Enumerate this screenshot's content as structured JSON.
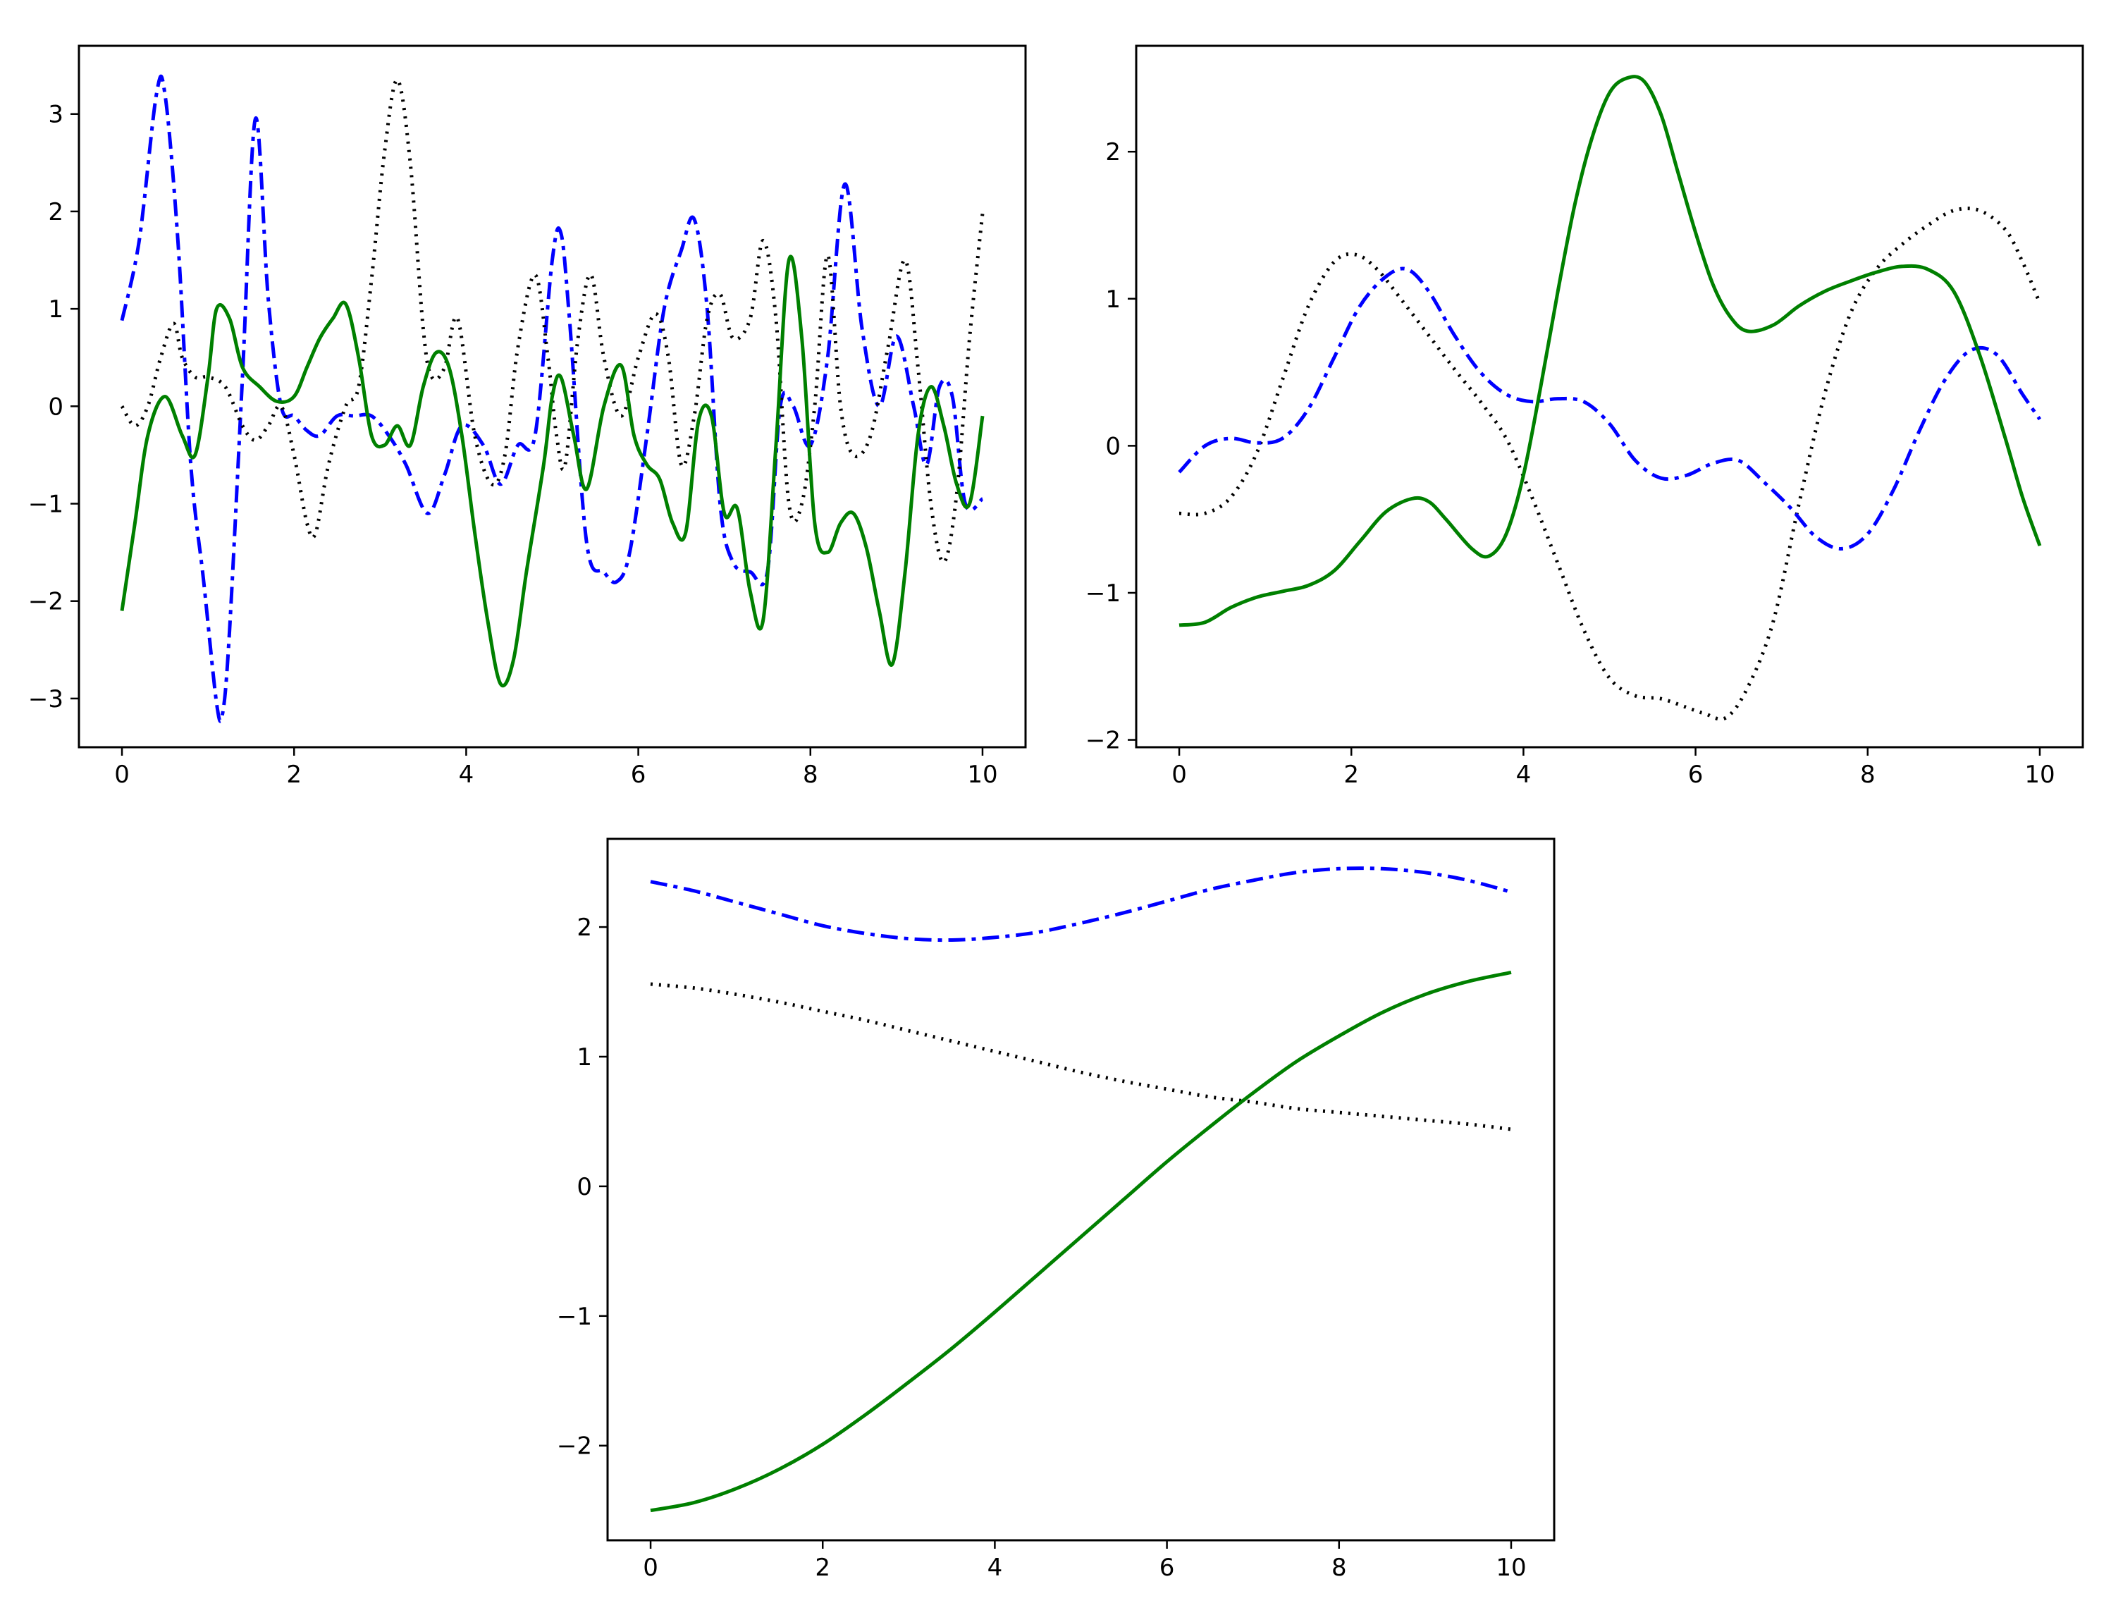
{
  "chart_data": [
    {
      "type": "line",
      "xlim": [
        -0.5,
        10.5
      ],
      "ylim": [
        -3.5,
        3.7
      ],
      "xticks": [
        0,
        2,
        4,
        6,
        8,
        10
      ],
      "yticks": [
        -3,
        -2,
        -1,
        0,
        1,
        2,
        3
      ],
      "xtick_labels": [
        "0",
        "2",
        "4",
        "6",
        "8",
        "10"
      ],
      "ytick_labels": [
        "−3",
        "−2",
        "−1",
        "0",
        "1",
        "2",
        "3"
      ],
      "grid": false,
      "series": [
        {
          "color": "#0000ff",
          "style": "dashdot",
          "x": [
            0,
            0.2,
            0.4,
            0.5,
            0.65,
            0.8,
            0.95,
            1.1,
            1.17,
            1.25,
            1.4,
            1.55,
            1.7,
            1.85,
            2.0,
            2.15,
            2.3,
            2.5,
            2.7,
            2.9,
            3.1,
            3.3,
            3.55,
            3.75,
            3.95,
            4.2,
            4.4,
            4.6,
            4.8,
            5.0,
            5.1,
            5.2,
            5.4,
            5.6,
            5.75,
            5.9,
            6.1,
            6.3,
            6.5,
            6.65,
            6.8,
            6.95,
            7.1,
            7.3,
            7.5,
            7.65,
            7.8,
            8.0,
            8.2,
            8.4,
            8.6,
            8.8,
            9.0,
            9.2,
            9.35,
            9.5,
            9.65,
            9.8,
            10.0
          ],
          "y": [
            0.88,
            1.7,
            3.2,
            3.2,
            1.7,
            -0.6,
            -1.8,
            -3.05,
            -3.15,
            -2.3,
            0.3,
            2.95,
            1.1,
            0.0,
            -0.1,
            -0.25,
            -0.3,
            -0.1,
            -0.1,
            -0.1,
            -0.3,
            -0.6,
            -1.1,
            -0.7,
            -0.2,
            -0.4,
            -0.8,
            -0.4,
            -0.3,
            1.5,
            1.78,
            0.9,
            -1.4,
            -1.7,
            -1.8,
            -1.5,
            -0.3,
            1.0,
            1.6,
            1.92,
            1.0,
            -1.0,
            -1.6,
            -1.7,
            -1.7,
            0.0,
            0.0,
            -0.4,
            0.5,
            2.28,
            0.8,
            0.0,
            0.72,
            0.0,
            -0.6,
            0.2,
            0.1,
            -1.0,
            -0.95
          ]
        },
        {
          "color": "#000000",
          "style": "dotted",
          "x": [
            0,
            0.15,
            0.3,
            0.45,
            0.6,
            0.7,
            0.85,
            1.0,
            1.2,
            1.4,
            1.55,
            1.7,
            1.85,
            2.0,
            2.15,
            2.25,
            2.4,
            2.6,
            2.75,
            2.9,
            3.05,
            3.2,
            3.35,
            3.5,
            3.6,
            3.75,
            3.9,
            4.1,
            4.3,
            4.45,
            4.6,
            4.8,
            4.95,
            5.05,
            5.15,
            5.3,
            5.45,
            5.6,
            5.8,
            6.0,
            6.2,
            6.35,
            6.5,
            6.65,
            6.8,
            6.95,
            7.1,
            7.3,
            7.45,
            7.6,
            7.75,
            7.9,
            8.05,
            8.2,
            8.35,
            8.5,
            8.7,
            8.9,
            9.1,
            9.25,
            9.4,
            9.55,
            9.7,
            9.85,
            10.0
          ],
          "y": [
            0.0,
            -0.2,
            0.0,
            0.5,
            0.85,
            0.5,
            0.3,
            0.3,
            0.2,
            -0.2,
            -0.35,
            -0.2,
            0.0,
            -0.5,
            -1.2,
            -1.3,
            -0.6,
            0.0,
            0.2,
            1.3,
            2.6,
            3.35,
            2.5,
            0.8,
            0.3,
            0.4,
            0.9,
            -0.3,
            -0.8,
            -0.5,
            0.6,
            1.35,
            0.5,
            -0.3,
            -0.6,
            0.7,
            1.35,
            0.5,
            -0.1,
            0.5,
            0.95,
            0.5,
            -0.6,
            -0.1,
            0.9,
            1.15,
            0.7,
            0.9,
            1.7,
            0.9,
            -1.0,
            -1.0,
            0.0,
            1.55,
            0.0,
            -0.5,
            -0.3,
            0.6,
            1.5,
            0.4,
            -1.0,
            -1.6,
            -0.9,
            0.7,
            1.98
          ]
        },
        {
          "color": "#008000",
          "style": "solid",
          "x": [
            0,
            0.15,
            0.3,
            0.5,
            0.7,
            0.85,
            1.0,
            1.1,
            1.25,
            1.4,
            1.6,
            1.8,
            2.0,
            2.15,
            2.3,
            2.45,
            2.6,
            2.75,
            2.9,
            3.05,
            3.2,
            3.35,
            3.5,
            3.65,
            3.8,
            3.95,
            4.1,
            4.25,
            4.4,
            4.55,
            4.7,
            4.9,
            5.0,
            5.1,
            5.25,
            5.4,
            5.6,
            5.8,
            5.95,
            6.1,
            6.25,
            6.4,
            6.55,
            6.7,
            6.85,
            7.0,
            7.15,
            7.3,
            7.45,
            7.6,
            7.75,
            7.9,
            8.05,
            8.2,
            8.35,
            8.5,
            8.65,
            8.8,
            8.95,
            9.1,
            9.25,
            9.4,
            9.55,
            9.7,
            9.85,
            10.0
          ],
          "y": [
            -2.1,
            -1.2,
            -0.3,
            0.1,
            -0.3,
            -0.5,
            0.3,
            1.0,
            0.9,
            0.4,
            0.2,
            0.05,
            0.1,
            0.4,
            0.7,
            0.9,
            1.05,
            0.5,
            -0.3,
            -0.4,
            -0.2,
            -0.4,
            0.2,
            0.55,
            0.4,
            -0.3,
            -1.3,
            -2.2,
            -2.85,
            -2.6,
            -1.7,
            -0.6,
            0.1,
            0.3,
            -0.3,
            -0.85,
            0.0,
            0.42,
            -0.3,
            -0.6,
            -0.75,
            -1.2,
            -1.3,
            -0.15,
            -0.1,
            -1.1,
            -1.05,
            -1.9,
            -2.2,
            -0.4,
            1.5,
            0.7,
            -1.2,
            -1.5,
            -1.2,
            -1.1,
            -1.45,
            -2.1,
            -2.65,
            -1.7,
            -0.3,
            0.2,
            -0.2,
            -0.8,
            -1.0,
            -0.1
          ]
        }
      ]
    },
    {
      "type": "line",
      "xlim": [
        -0.5,
        10.5
      ],
      "ylim": [
        -2.05,
        2.72
      ],
      "xticks": [
        0,
        2,
        4,
        6,
        8,
        10
      ],
      "yticks": [
        -2,
        -1,
        0,
        1,
        2
      ],
      "xtick_labels": [
        "0",
        "2",
        "4",
        "6",
        "8",
        "10"
      ],
      "ytick_labels": [
        "−2",
        "−1",
        "0",
        "1",
        "2"
      ],
      "grid": false,
      "series": [
        {
          "color": "#000000",
          "style": "dotted",
          "x": [
            0,
            0.3,
            0.6,
            0.9,
            1.2,
            1.5,
            1.8,
            2.05,
            2.3,
            2.6,
            2.9,
            3.2,
            3.5,
            3.8,
            4.1,
            4.4,
            4.7,
            5.0,
            5.3,
            5.6,
            5.9,
            6.1,
            6.35,
            6.6,
            6.9,
            7.2,
            7.5,
            7.8,
            8.1,
            8.4,
            8.7,
            9.0,
            9.3,
            9.6,
            9.8,
            10.0
          ],
          "y": [
            -0.46,
            -0.46,
            -0.35,
            -0.05,
            0.45,
            0.95,
            1.25,
            1.3,
            1.2,
            0.98,
            0.75,
            0.52,
            0.3,
            0.05,
            -0.35,
            -0.8,
            -1.25,
            -1.58,
            -1.7,
            -1.72,
            -1.78,
            -1.82,
            -1.85,
            -1.65,
            -1.2,
            -0.4,
            0.35,
            0.9,
            1.2,
            1.37,
            1.5,
            1.6,
            1.6,
            1.47,
            1.25,
            0.97
          ]
        },
        {
          "color": "#0000ff",
          "style": "dashdot",
          "x": [
            0,
            0.3,
            0.6,
            0.9,
            1.2,
            1.5,
            1.8,
            2.1,
            2.4,
            2.65,
            2.9,
            3.2,
            3.5,
            3.8,
            4.1,
            4.4,
            4.7,
            5.0,
            5.3,
            5.6,
            5.9,
            6.2,
            6.5,
            6.8,
            7.1,
            7.4,
            7.7,
            8.0,
            8.3,
            8.6,
            8.9,
            9.2,
            9.5,
            9.8,
            10.0
          ],
          "y": [
            -0.18,
            0.0,
            0.05,
            0.02,
            0.05,
            0.25,
            0.6,
            0.95,
            1.15,
            1.2,
            1.05,
            0.75,
            0.5,
            0.35,
            0.3,
            0.32,
            0.3,
            0.15,
            -0.1,
            -0.22,
            -0.2,
            -0.12,
            -0.1,
            -0.25,
            -0.42,
            -0.62,
            -0.7,
            -0.6,
            -0.3,
            0.1,
            0.45,
            0.65,
            0.62,
            0.35,
            0.18
          ]
        },
        {
          "color": "#008000",
          "style": "solid",
          "x": [
            0,
            0.3,
            0.6,
            0.9,
            1.2,
            1.5,
            1.8,
            2.1,
            2.4,
            2.7,
            2.9,
            3.1,
            3.4,
            3.6,
            3.8,
            4.0,
            4.2,
            4.4,
            4.6,
            4.8,
            5.0,
            5.2,
            5.4,
            5.6,
            5.8,
            6.0,
            6.2,
            6.4,
            6.6,
            6.9,
            7.2,
            7.5,
            7.8,
            8.1,
            8.4,
            8.7,
            9.0,
            9.3,
            9.6,
            9.8,
            10.0
          ],
          "y": [
            -1.22,
            -1.2,
            -1.1,
            -1.03,
            -0.99,
            -0.95,
            -0.85,
            -0.65,
            -0.45,
            -0.36,
            -0.38,
            -0.5,
            -0.7,
            -0.75,
            -0.6,
            -0.2,
            0.4,
            1.05,
            1.65,
            2.1,
            2.4,
            2.5,
            2.48,
            2.25,
            1.85,
            1.45,
            1.1,
            0.88,
            0.78,
            0.82,
            0.95,
            1.05,
            1.12,
            1.18,
            1.22,
            1.2,
            1.05,
            0.62,
            0.05,
            -0.35,
            -0.68
          ]
        }
      ]
    },
    {
      "type": "line",
      "xlim": [
        -0.5,
        10.5
      ],
      "ylim": [
        -2.73,
        2.68
      ],
      "xticks": [
        0,
        2,
        4,
        6,
        8,
        10
      ],
      "yticks": [
        -2,
        -1,
        0,
        1,
        2
      ],
      "xtick_labels": [
        "0",
        "2",
        "4",
        "6",
        "8",
        "10"
      ],
      "ytick_labels": [
        "−2",
        "−1",
        "0",
        "1",
        "2"
      ],
      "grid": false,
      "series": [
        {
          "color": "#0000ff",
          "style": "dashdot",
          "x": [
            0,
            0.5,
            1,
            1.5,
            2,
            2.5,
            3,
            3.5,
            4,
            4.5,
            5,
            5.5,
            6,
            6.5,
            7,
            7.5,
            8,
            8.5,
            9,
            9.5,
            10
          ],
          "y": [
            2.35,
            2.28,
            2.19,
            2.1,
            2.01,
            1.95,
            1.91,
            1.9,
            1.92,
            1.96,
            2.03,
            2.11,
            2.2,
            2.29,
            2.36,
            2.42,
            2.45,
            2.45,
            2.42,
            2.36,
            2.27
          ]
        },
        {
          "color": "#000000",
          "style": "dotted",
          "x": [
            0,
            0.5,
            1,
            1.5,
            2,
            2.5,
            3,
            3.5,
            4,
            4.5,
            5,
            5.5,
            6,
            6.5,
            7,
            7.5,
            8,
            8.5,
            9,
            9.5,
            10
          ],
          "y": [
            1.56,
            1.53,
            1.48,
            1.42,
            1.35,
            1.28,
            1.2,
            1.12,
            1.04,
            0.96,
            0.88,
            0.81,
            0.75,
            0.69,
            0.65,
            0.6,
            0.57,
            0.54,
            0.51,
            0.48,
            0.44
          ]
        },
        {
          "color": "#008000",
          "style": "solid",
          "x": [
            0,
            0.5,
            1,
            1.5,
            2,
            2.5,
            3,
            3.5,
            4,
            4.5,
            5,
            5.5,
            6,
            6.5,
            7,
            7.5,
            8,
            8.5,
            9,
            9.5,
            10
          ],
          "y": [
            -2.5,
            -2.44,
            -2.33,
            -2.18,
            -1.99,
            -1.76,
            -1.51,
            -1.25,
            -0.97,
            -0.68,
            -0.39,
            -0.1,
            0.19,
            0.46,
            0.72,
            0.96,
            1.16,
            1.34,
            1.48,
            1.58,
            1.65
          ]
        }
      ]
    }
  ]
}
